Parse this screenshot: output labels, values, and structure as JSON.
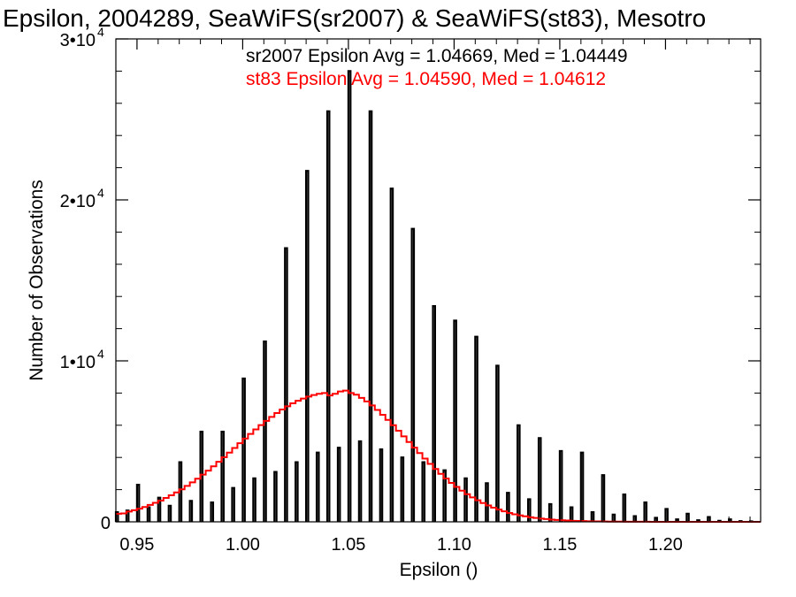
{
  "chart_data": {
    "type": "bar",
    "title": "Epsilon, 2004289, SeaWiFS(sr2007) & SeaWiFS(st83), Mesotro",
    "xlabel": "Epsilon ()",
    "ylabel": "Number of Observations",
    "xlim": [
      0.94,
      1.245
    ],
    "ylim": [
      0,
      30000
    ],
    "x_ticks": [
      0.95,
      1.0,
      1.05,
      1.1,
      1.15,
      1.2
    ],
    "x_tick_labels": [
      "0.95",
      "1.00",
      "1.05",
      "1.10",
      "1.15",
      "1.20"
    ],
    "y_ticks": [
      {
        "value": 0,
        "mantissa": "0",
        "exp": ""
      },
      {
        "value": 10000,
        "mantissa": "1•10",
        "exp": "4"
      },
      {
        "value": 20000,
        "mantissa": "2•10",
        "exp": "4"
      },
      {
        "value": 30000,
        "mantissa": "3•10",
        "exp": "4"
      }
    ],
    "grid": false,
    "annotations": [
      {
        "text": "sr2007 Epsilon Avg = 1.04669, Med = 1.04449",
        "color": "#000000"
      },
      {
        "text": "st83 Epsilon Avg = 1.04590, Med = 1.04612",
        "color": "#ff0000"
      }
    ],
    "series": [
      {
        "color": "#000000",
        "style": "histogram-step",
        "bin_width": 0.001,
        "bins": [
          [
            0.9405,
            600
          ],
          [
            0.9455,
            700
          ],
          [
            0.9505,
            2300
          ],
          [
            0.9555,
            900
          ],
          [
            0.9605,
            1500
          ],
          [
            0.9655,
            1000
          ],
          [
            0.9705,
            3700
          ],
          [
            0.9755,
            1300
          ],
          [
            0.9805,
            5600
          ],
          [
            0.9855,
            1200
          ],
          [
            0.9905,
            5600
          ],
          [
            0.9955,
            2100
          ],
          [
            1.0005,
            8900
          ],
          [
            1.0055,
            2700
          ],
          [
            1.0105,
            11200
          ],
          [
            1.0155,
            3100
          ],
          [
            1.0205,
            17000
          ],
          [
            1.0255,
            3700
          ],
          [
            1.0305,
            21800
          ],
          [
            1.0355,
            4300
          ],
          [
            1.0405,
            25500
          ],
          [
            1.0455,
            4600
          ],
          [
            1.0505,
            28000
          ],
          [
            1.0555,
            5000
          ],
          [
            1.0605,
            25500
          ],
          [
            1.0655,
            4500
          ],
          [
            1.0705,
            20700
          ],
          [
            1.0755,
            4000
          ],
          [
            1.0805,
            18200
          ],
          [
            1.0855,
            3700
          ],
          [
            1.0905,
            13400
          ],
          [
            1.0955,
            3200
          ],
          [
            1.1005,
            12500
          ],
          [
            1.1055,
            2700
          ],
          [
            1.1105,
            11500
          ],
          [
            1.1155,
            2400
          ],
          [
            1.1205,
            9700
          ],
          [
            1.1255,
            1800
          ],
          [
            1.1305,
            6000
          ],
          [
            1.1355,
            1400
          ],
          [
            1.1405,
            5200
          ],
          [
            1.1455,
            1100
          ],
          [
            1.1505,
            4400
          ],
          [
            1.1555,
            900
          ],
          [
            1.1605,
            4300
          ],
          [
            1.1655,
            600
          ],
          [
            1.1705,
            2900
          ],
          [
            1.1755,
            450
          ],
          [
            1.1805,
            1700
          ],
          [
            1.1855,
            350
          ],
          [
            1.1905,
            1200
          ],
          [
            1.1955,
            250
          ],
          [
            1.2005,
            800
          ],
          [
            1.2055,
            150
          ],
          [
            1.2105,
            500
          ],
          [
            1.2155,
            100
          ],
          [
            1.2205,
            300
          ],
          [
            1.2255,
            60
          ],
          [
            1.2305,
            150
          ],
          [
            1.2355,
            40
          ],
          [
            1.2405,
            30
          ]
        ]
      },
      {
        "color": "#ff0000",
        "style": "histogram-step",
        "bin_width": 0.0025,
        "bins": [
          [
            0.94125,
            500
          ],
          [
            0.94375,
            520
          ],
          [
            0.94625,
            640
          ],
          [
            0.94875,
            720
          ],
          [
            0.95125,
            820
          ],
          [
            0.95375,
            920
          ],
          [
            0.95625,
            1050
          ],
          [
            0.95875,
            1180
          ],
          [
            0.96125,
            1320
          ],
          [
            0.96375,
            1480
          ],
          [
            0.96625,
            1650
          ],
          [
            0.96875,
            1830
          ],
          [
            0.97125,
            2020
          ],
          [
            0.97375,
            2230
          ],
          [
            0.97625,
            2450
          ],
          [
            0.97875,
            2680
          ],
          [
            0.98125,
            2930
          ],
          [
            0.98375,
            3180
          ],
          [
            0.98625,
            3450
          ],
          [
            0.98875,
            3730
          ],
          [
            0.99125,
            4010
          ],
          [
            0.99375,
            4300
          ],
          [
            0.99625,
            4590
          ],
          [
            0.99875,
            4880
          ],
          [
            1.00125,
            5170
          ],
          [
            1.00375,
            5460
          ],
          [
            1.00625,
            5740
          ],
          [
            1.00875,
            6010
          ],
          [
            1.01125,
            6270
          ],
          [
            1.01375,
            6520
          ],
          [
            1.01625,
            6760
          ],
          [
            1.01875,
            6980
          ],
          [
            1.02125,
            7180
          ],
          [
            1.02375,
            7360
          ],
          [
            1.02625,
            7520
          ],
          [
            1.02875,
            7660
          ],
          [
            1.03125,
            7780
          ],
          [
            1.03375,
            7880
          ],
          [
            1.03625,
            7950
          ],
          [
            1.03875,
            8000
          ],
          [
            1.04125,
            7850
          ],
          [
            1.04375,
            7950
          ],
          [
            1.04625,
            8100
          ],
          [
            1.04875,
            8150
          ],
          [
            1.05125,
            8000
          ],
          [
            1.05375,
            7900
          ],
          [
            1.05625,
            7700
          ],
          [
            1.05875,
            7480
          ],
          [
            1.06125,
            7230
          ],
          [
            1.06375,
            6950
          ],
          [
            1.06625,
            6650
          ],
          [
            1.06875,
            6330
          ],
          [
            1.07125,
            6000
          ],
          [
            1.07375,
            5660
          ],
          [
            1.07625,
            5310
          ],
          [
            1.07875,
            4960
          ],
          [
            1.08125,
            4610
          ],
          [
            1.08375,
            4270
          ],
          [
            1.08625,
            3930
          ],
          [
            1.08875,
            3600
          ],
          [
            1.09125,
            3280
          ],
          [
            1.09375,
            2980
          ],
          [
            1.09625,
            2690
          ],
          [
            1.09875,
            2420
          ],
          [
            1.10125,
            2170
          ],
          [
            1.10375,
            1940
          ],
          [
            1.10625,
            1720
          ],
          [
            1.10875,
            1520
          ],
          [
            1.11125,
            1340
          ],
          [
            1.11375,
            1170
          ],
          [
            1.11625,
            1020
          ],
          [
            1.11875,
            880
          ],
          [
            1.12125,
            760
          ],
          [
            1.12375,
            650
          ],
          [
            1.12625,
            550
          ],
          [
            1.12875,
            470
          ],
          [
            1.13125,
            400
          ],
          [
            1.13375,
            340
          ],
          [
            1.13625,
            280
          ],
          [
            1.13875,
            240
          ],
          [
            1.14125,
            200
          ],
          [
            1.14375,
            170
          ],
          [
            1.14625,
            140
          ],
          [
            1.14875,
            115
          ],
          [
            1.15125,
            95
          ],
          [
            1.15375,
            80
          ],
          [
            1.15625,
            65
          ],
          [
            1.15875,
            55
          ],
          [
            1.16125,
            45
          ],
          [
            1.16375,
            37
          ],
          [
            1.16625,
            30
          ],
          [
            1.16875,
            25
          ],
          [
            1.17125,
            20
          ],
          [
            1.17375,
            16
          ],
          [
            1.17625,
            13
          ],
          [
            1.17875,
            11
          ],
          [
            1.18125,
            9
          ],
          [
            1.18375,
            7
          ],
          [
            1.18625,
            6
          ],
          [
            1.18875,
            5
          ],
          [
            1.19125,
            4
          ],
          [
            1.19375,
            3
          ],
          [
            1.19625,
            3
          ],
          [
            1.19875,
            2
          ],
          [
            1.20125,
            2
          ],
          [
            1.20375,
            2
          ],
          [
            1.20625,
            1
          ],
          [
            1.20875,
            1
          ],
          [
            1.21125,
            1
          ],
          [
            1.21375,
            1
          ],
          [
            1.21625,
            1
          ],
          [
            1.21875,
            1
          ],
          [
            1.22125,
            1
          ],
          [
            1.22375,
            1
          ],
          [
            1.22625,
            1
          ],
          [
            1.22875,
            1
          ],
          [
            1.23125,
            1
          ],
          [
            1.23375,
            1
          ],
          [
            1.23625,
            1
          ],
          [
            1.23875,
            1
          ],
          [
            1.24125,
            1
          ],
          [
            1.24375,
            1
          ]
        ]
      }
    ]
  }
}
